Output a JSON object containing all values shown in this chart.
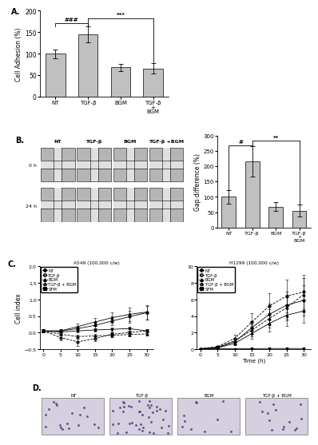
{
  "panel_A": {
    "categories": [
      "NT",
      "TGF-β",
      "BGM",
      "TGF-β\n+\nBGM"
    ],
    "values": [
      100,
      145,
      68,
      66
    ],
    "errors": [
      10,
      18,
      8,
      12
    ],
    "bar_color": "#c0c0c0",
    "ylabel": "Cell Adhesion (%)",
    "ylim": [
      0,
      200
    ],
    "yticks": [
      0,
      50,
      100,
      150,
      200
    ],
    "sig1": "###",
    "sig2": "***"
  },
  "panel_B_bar": {
    "categories": [
      "NT",
      "TGF-β",
      "BGM",
      "TGF-β\n+\nBGM"
    ],
    "values": [
      100,
      215,
      68,
      55
    ],
    "errors": [
      22,
      50,
      15,
      20
    ],
    "bar_color": "#c0c0c0",
    "ylabel": "Gap difference (%)",
    "ylim": [
      0,
      300
    ],
    "yticks": [
      0,
      50,
      100,
      150,
      200,
      250,
      300
    ],
    "sig1": "#",
    "sig2": "**"
  },
  "panel_C_A549": {
    "title": "A549 (100,000 c/w)",
    "time": [
      0,
      5,
      10,
      15,
      20,
      25,
      30
    ],
    "NT": [
      0.05,
      0.05,
      0.12,
      0.22,
      0.35,
      0.48,
      0.6
    ],
    "TGF_b": [
      0.05,
      -0.15,
      -0.28,
      -0.18,
      -0.05,
      0.0,
      0.05
    ],
    "BGM": [
      0.05,
      0.05,
      0.18,
      0.32,
      0.45,
      0.55,
      0.62
    ],
    "TGF_BGM": [
      0.05,
      -0.05,
      -0.12,
      -0.1,
      -0.08,
      -0.06,
      -0.04
    ],
    "SFM": [
      0.05,
      0.02,
      0.05,
      0.08,
      0.1,
      0.12,
      0.05
    ],
    "ylim": [
      -0.5,
      2.0
    ],
    "yticks": [
      -0.5,
      0.0,
      0.5,
      1.0,
      1.5,
      2.0
    ],
    "ylabel": "Cell index",
    "xlabel": ""
  },
  "panel_C_H1299": {
    "title": "H1299 (100,000 c/w)",
    "time": [
      0,
      5,
      10,
      15,
      20,
      25,
      30
    ],
    "NT": [
      0.05,
      0.2,
      0.9,
      2.6,
      4.2,
      5.3,
      5.9
    ],
    "TGF_b": [
      0.05,
      0.3,
      1.3,
      3.3,
      5.2,
      6.4,
      6.9
    ],
    "BGM": [
      0.05,
      0.15,
      0.7,
      1.9,
      3.1,
      4.1,
      4.6
    ],
    "TGF_BGM": [
      0.05,
      0.25,
      1.0,
      2.3,
      3.7,
      5.0,
      6.6
    ],
    "SFM": [
      0.05,
      0.05,
      0.05,
      0.06,
      0.08,
      0.08,
      0.08
    ],
    "ylim": [
      0,
      10
    ],
    "yticks": [
      0,
      2,
      4,
      6,
      8,
      10
    ],
    "ylabel": "",
    "xlabel": "Time (h)"
  },
  "legend_labels": [
    "NT",
    "TGF-β",
    "BGM",
    "TGF-β + BGM",
    "SFM"
  ],
  "bg_color": "#ffffff",
  "bar_edge_color": "#000000"
}
